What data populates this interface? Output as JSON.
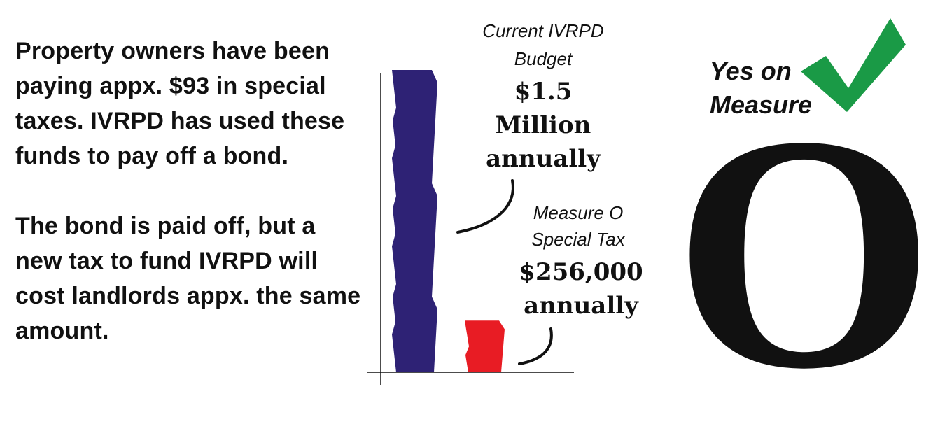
{
  "left_text": {
    "paragraph1": "Property owners have been paying appx. $93 in special taxes. IVRPD has used these funds to pay off a bond.",
    "paragraph2": "The bond is paid off, but a new tax to fund IVRPD will cost landlords appx. the same amount."
  },
  "chart_data": {
    "type": "bar",
    "categories": [
      "Current IVRPD Budget",
      "Measure O Special Tax"
    ],
    "values": [
      1500000,
      256000
    ],
    "colors": [
      "#2e2275",
      "#e81c24"
    ],
    "title": "",
    "xlabel": "",
    "ylabel": "",
    "ylim": [
      0,
      1500000
    ],
    "annotations": [
      {
        "label_line1": "Current IVRPD",
        "label_line2": "Budget",
        "value_line1": "$1.5",
        "value_line2": "Million",
        "value_line3": "annually"
      },
      {
        "label_line1": "Measure O",
        "label_line2": "Special Tax",
        "value_line1": "$256,000",
        "value_line2": "annually"
      }
    ]
  },
  "measure": {
    "yes_line1": "Yes on",
    "yes_line2": "Measure",
    "letter": "O",
    "check_color": "#1a9a46"
  }
}
